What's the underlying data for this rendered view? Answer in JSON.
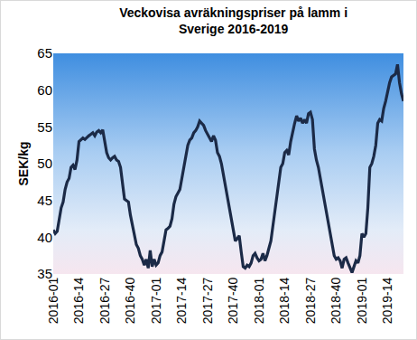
{
  "chart_data": {
    "type": "line",
    "title": "Veckovisa avräkningspriser på lamm i\nSverige 2016-2019",
    "y_label": "SEK/kg",
    "color": "#1b2a47",
    "grid": false,
    "ylim": [
      35,
      65
    ],
    "yticks": [
      35,
      40,
      45,
      50,
      55,
      60,
      65
    ],
    "categories": [
      "2016-01",
      null,
      null,
      null,
      null,
      null,
      null,
      null,
      null,
      null,
      null,
      null,
      null,
      "2016-14",
      null,
      null,
      null,
      null,
      null,
      null,
      null,
      null,
      null,
      null,
      null,
      null,
      "2016-27",
      null,
      null,
      null,
      null,
      null,
      null,
      null,
      null,
      null,
      null,
      null,
      null,
      "2016-40",
      null,
      null,
      null,
      null,
      null,
      null,
      null,
      null,
      null,
      null,
      null,
      null,
      "2017-01",
      null,
      null,
      null,
      null,
      null,
      null,
      null,
      null,
      null,
      null,
      null,
      null,
      "2017-14",
      null,
      null,
      null,
      null,
      null,
      null,
      null,
      null,
      null,
      null,
      null,
      null,
      "2017-27",
      null,
      null,
      null,
      null,
      null,
      null,
      null,
      null,
      null,
      null,
      null,
      null,
      "2017-40",
      null,
      null,
      null,
      null,
      null,
      null,
      null,
      null,
      null,
      null,
      null,
      null,
      "2018-01",
      null,
      null,
      null,
      null,
      null,
      null,
      null,
      null,
      null,
      null,
      null,
      null,
      "2018-14",
      null,
      null,
      null,
      null,
      null,
      null,
      null,
      null,
      null,
      null,
      null,
      null,
      "2018-27",
      null,
      null,
      null,
      null,
      null,
      null,
      null,
      null,
      null,
      null,
      null,
      null,
      "2018-40",
      null,
      null,
      null,
      null,
      null,
      null,
      null,
      null,
      null,
      null,
      null,
      null,
      "2019-01",
      null,
      null,
      null,
      null,
      null,
      null,
      null,
      null,
      null,
      null,
      null,
      null,
      "2019-14",
      null,
      null,
      null,
      null,
      null,
      null,
      null,
      null
    ],
    "values": [
      41.0,
      40.5,
      40.8,
      42.5,
      44.0,
      44.8,
      46.5,
      47.5,
      48.0,
      49.5,
      49.8,
      49.2,
      50.5,
      53.0,
      53.2,
      53.5,
      53.3,
      53.6,
      53.8,
      54.0,
      54.2,
      53.8,
      54.3,
      54.5,
      54.2,
      54.6,
      53.0,
      51.5,
      50.8,
      50.5,
      50.8,
      51.0,
      50.5,
      50.3,
      49.5,
      47.5,
      45.2,
      45.0,
      44.8,
      43.0,
      41.5,
      40.0,
      39.0,
      38.5,
      37.5,
      37.0,
      36.2,
      37.0,
      35.8,
      38.2,
      36.0,
      37.0,
      36.2,
      36.5,
      37.5,
      38.0,
      39.5,
      41.0,
      41.2,
      41.5,
      42.5,
      44.5,
      45.5,
      46.0,
      46.5,
      48.0,
      49.5,
      51.0,
      52.5,
      53.2,
      53.5,
      54.2,
      54.5,
      55.0,
      55.8,
      55.5,
      55.2,
      54.5,
      54.0,
      53.5,
      53.0,
      53.8,
      53.2,
      51.5,
      51.0,
      50.0,
      48.5,
      46.5,
      45.0,
      43.5,
      42.0,
      40.5,
      39.5,
      39.8,
      40.2,
      38.0,
      36.0,
      35.8,
      36.2,
      36.0,
      36.5,
      37.5,
      37.8,
      37.2,
      36.8,
      37.0,
      37.8,
      36.8,
      37.5,
      38.5,
      39.5,
      41.5,
      43.5,
      45.5,
      48.0,
      49.5,
      50.0,
      51.5,
      51.8,
      51.2,
      53.0,
      54.5,
      55.5,
      56.5,
      55.8,
      56.2,
      55.5,
      56.0,
      55.5,
      56.8,
      57.0,
      56.0,
      52.0,
      50.5,
      49.5,
      48.0,
      46.5,
      45.0,
      43.5,
      42.0,
      40.5,
      39.0,
      37.5,
      37.0,
      37.2,
      36.8,
      35.8,
      37.0,
      37.2,
      36.5,
      35.8,
      35.2,
      36.0,
      36.8,
      36.5,
      37.5,
      40.5,
      40.0,
      40.5,
      44.0,
      49.5,
      50.0,
      51.0,
      52.5,
      55.5,
      56.0,
      55.8,
      57.5,
      58.5,
      60.0,
      61.0,
      61.8,
      62.0,
      62.2,
      63.5,
      61.0,
      59.5,
      58.5
    ]
  }
}
